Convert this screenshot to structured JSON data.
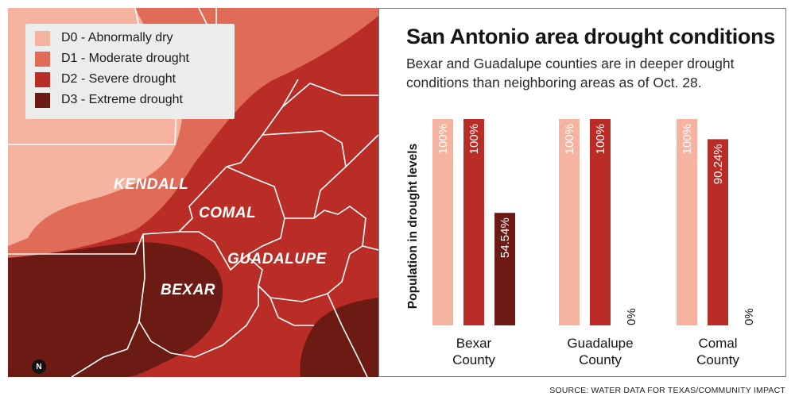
{
  "map": {
    "legend": [
      {
        "code": "D0",
        "label": "D0 - Abnormally dry",
        "color": "#f5b3a0"
      },
      {
        "code": "D1",
        "label": "D1 - Moderate drought",
        "color": "#e06c57"
      },
      {
        "code": "D2",
        "label": "D2 - Severe drought",
        "color": "#b92d26"
      },
      {
        "code": "D3",
        "label": "D3 - Extreme drought",
        "color": "#6b1a14"
      }
    ],
    "counties": [
      "KENDALL",
      "COMAL",
      "BEXAR",
      "GUADALUPE"
    ],
    "compass": "N"
  },
  "title": "San Antonio area drought conditions",
  "subtitle_lines": [
    "Bexar and Guadalupe counties are in deeper drought",
    "conditions than neighboring areas as of Oct. 28."
  ],
  "source": "SOURCE: WATER DATA FOR TEXAS/COMMUNITY IMPACT",
  "colors": {
    "D0": "#f5b3a0",
    "D2": "#b92d26",
    "D3": "#6b1a14"
  },
  "chart_data": {
    "type": "bar",
    "ylabel": "Population in drought levels",
    "ylim": [
      0,
      100
    ],
    "categories": [
      "Bexar County",
      "Guadalupe County",
      "Comal County"
    ],
    "category_lines": [
      [
        "Bexar",
        "County"
      ],
      [
        "Guadalupe",
        "County"
      ],
      [
        "Comal",
        "County"
      ]
    ],
    "series": [
      {
        "name": "D0",
        "values": [
          100,
          100,
          100
        ],
        "labels": [
          "100%",
          "100%",
          "100%"
        ]
      },
      {
        "name": "D2",
        "values": [
          100,
          100,
          90.24
        ],
        "labels": [
          "100%",
          "100%",
          "90.24%"
        ]
      },
      {
        "name": "D3",
        "values": [
          54.54,
          0,
          0
        ],
        "labels": [
          "54.54%",
          "0%",
          "0%"
        ]
      }
    ]
  }
}
